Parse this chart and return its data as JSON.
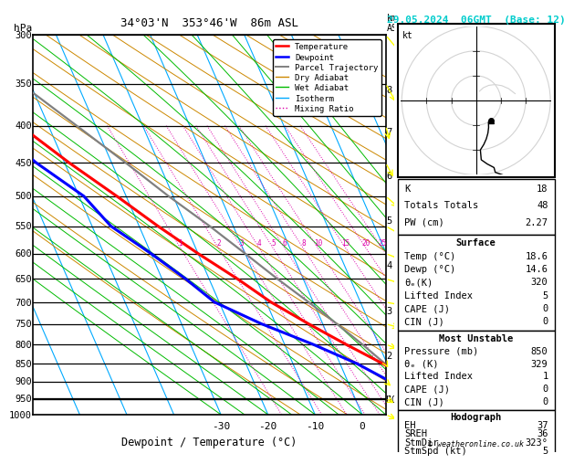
{
  "title_left": "34°03'N  353°46'W  86m ASL",
  "title_right": "29.05.2024  06GMT  (Base: 12)",
  "xlabel": "Dewpoint / Temperature (°C)",
  "pressure_levels": [
    300,
    350,
    400,
    450,
    500,
    550,
    600,
    650,
    700,
    750,
    800,
    850,
    900,
    950,
    1000
  ],
  "km_levels": [
    8,
    7,
    6,
    5,
    4,
    3,
    2,
    1
  ],
  "km_pressures": [
    357,
    408,
    469,
    540,
    623,
    719,
    829,
    952
  ],
  "T_min": -35,
  "T_max": 40,
  "skew_factor": 35.0,
  "isotherm_color": "#00aaff",
  "dry_adiabat_color": "#cc8800",
  "wet_adiabat_color": "#00bb00",
  "mixing_ratio_color": "#dd00aa",
  "temp_profile_T": [
    18.6,
    17.0,
    14.0,
    9.0,
    3.0,
    -3.0,
    -9.0,
    -14.0,
    -20.0,
    -26.0,
    -32.0,
    -39.0,
    -46.0,
    -53.5,
    -60.0
  ],
  "temp_profile_P": [
    1000,
    950,
    900,
    850,
    800,
    750,
    700,
    650,
    600,
    550,
    500,
    450,
    400,
    350,
    300
  ],
  "dewp_profile_T": [
    14.6,
    12.5,
    9.0,
    3.5,
    -4.0,
    -13.0,
    -21.0,
    -25.0,
    -30.0,
    -36.0,
    -39.0,
    -46.0,
    -52.0,
    -59.0,
    -66.0
  ],
  "dewp_profile_P": [
    1000,
    950,
    900,
    850,
    800,
    750,
    700,
    650,
    600,
    550,
    500,
    450,
    400,
    350,
    300
  ],
  "parcel_T": [
    18.6,
    15.5,
    12.5,
    9.5,
    6.5,
    3.0,
    -1.0,
    -5.5,
    -10.0,
    -15.0,
    -21.0,
    -27.0,
    -34.0,
    -42.0,
    -51.0
  ],
  "parcel_P": [
    1000,
    950,
    900,
    850,
    800,
    750,
    700,
    650,
    600,
    550,
    500,
    450,
    400,
    350,
    300
  ],
  "lcl_pressure": 953,
  "mixing_ratios": [
    1,
    2,
    3,
    4,
    5,
    6,
    8,
    10,
    15,
    20,
    25
  ],
  "stats": {
    "K": 18,
    "Totals_Totals": 48,
    "PW_cm": "2.27",
    "Surface_Temp": "18.6",
    "Surface_Dewp": "14.6",
    "Surface_theta_e": 320,
    "Surface_Lifted": 5,
    "Surface_CAPE": 0,
    "Surface_CIN": 0,
    "MU_Pressure": 850,
    "MU_theta_e": 329,
    "MU_Lifted": 1,
    "MU_CAPE": 0,
    "MU_CIN": 0,
    "EH": 37,
    "SREH": 36,
    "StmDir": 323,
    "StmSpd": 5
  },
  "wind_levels_P": [
    1000,
    950,
    900,
    850,
    800,
    750,
    700,
    650,
    600,
    550,
    500,
    450,
    400,
    350,
    300
  ],
  "wind_levels_spd": [
    5,
    5,
    5,
    5,
    5,
    5,
    8,
    8,
    10,
    10,
    10,
    12,
    12,
    15,
    18
  ],
  "wind_levels_dir": [
    323,
    330,
    340,
    350,
    320,
    310,
    300,
    315,
    320,
    330,
    340,
    350,
    355,
    350,
    345
  ]
}
